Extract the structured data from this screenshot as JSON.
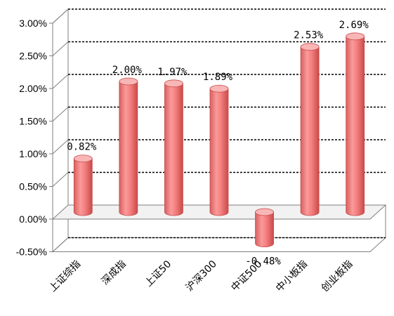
{
  "chart_data": {
    "type": "bar",
    "style": "3d-cylinder",
    "categories": [
      "上证综指",
      "深成指",
      "上证50",
      "沪深300",
      "中证500",
      "中小板指",
      "创业板指"
    ],
    "values": [
      0.82,
      2.0,
      1.97,
      1.89,
      -0.48,
      2.53,
      2.69
    ],
    "data_labels": [
      "0.82%",
      "2.00%",
      "1.97%",
      "1.89%",
      "-0.48%",
      "2.53%",
      "2.69%"
    ],
    "y_ticks": [
      -0.5,
      0,
      0.5,
      1.0,
      1.5,
      2.0,
      2.5,
      3.0
    ],
    "y_tick_labels": [
      "-0.50%",
      "0.00%",
      "0.50%",
      "1.00%",
      "1.50%",
      "2.00%",
      "2.50%",
      "3.00%"
    ],
    "ylim": [
      -0.5,
      3.0
    ],
    "grid": true,
    "grid_style": "dashed",
    "legend": "none",
    "colors": {
      "bar_body": "#f47f7f",
      "bar_top": "#f9b6b6",
      "bar_edge": "#c94a4a",
      "gridline": "#000000",
      "axis": "#7f7f7f",
      "floor": "#f2f2f2"
    }
  }
}
